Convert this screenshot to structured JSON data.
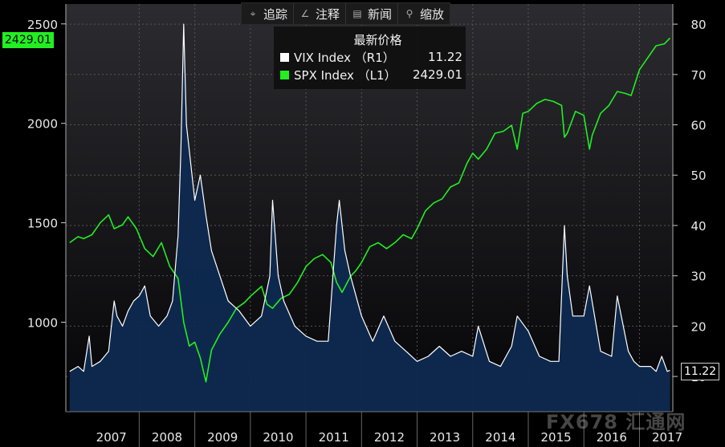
{
  "toolbar": {
    "items": [
      {
        "label": "追踪",
        "icon": "crosshair-icon"
      },
      {
        "label": "注释",
        "icon": "pencil-icon"
      },
      {
        "label": "新闻",
        "icon": "news-icon"
      },
      {
        "label": "缩放",
        "icon": "magnifier-icon"
      }
    ]
  },
  "legend": {
    "title": "最新价格",
    "entries": [
      {
        "name": "VIX Index （R1）",
        "value": "11.22",
        "color": "#ffffff"
      },
      {
        "name": "SPX Index （L1）",
        "value": "2429.01",
        "color": "#22ee22"
      }
    ]
  },
  "badges": {
    "spx": "2429.01",
    "vix": "11.22"
  },
  "watermark": "FX678 汇通网",
  "chart_data": {
    "type": "line",
    "x_categories": [
      "2007",
      "2008",
      "2009",
      "2010",
      "2011",
      "2012",
      "2013",
      "2014",
      "2015",
      "2016",
      "2017"
    ],
    "y_left": {
      "ticks": [
        1000,
        1500,
        2000,
        2500
      ],
      "range": [
        550,
        2600
      ]
    },
    "y_right": {
      "ticks": [
        10,
        20,
        30,
        40,
        50,
        60,
        70,
        80
      ],
      "range": [
        3,
        84
      ]
    },
    "grid": true,
    "series": [
      {
        "name": "SPX Index （L1）",
        "axis": "left",
        "color": "#22ee22",
        "x": [
          2006.75,
          2006.9,
          2007.0,
          2007.15,
          2007.3,
          2007.45,
          2007.55,
          2007.7,
          2007.8,
          2007.95,
          2008.1,
          2008.25,
          2008.4,
          2008.55,
          2008.7,
          2008.8,
          2008.9,
          2009.0,
          2009.1,
          2009.2,
          2009.3,
          2009.45,
          2009.6,
          2009.75,
          2009.9,
          2010.0,
          2010.2,
          2010.3,
          2010.4,
          2010.55,
          2010.7,
          2010.85,
          2011.0,
          2011.15,
          2011.3,
          2011.45,
          2011.55,
          2011.65,
          2011.8,
          2011.9,
          2012.0,
          2012.15,
          2012.3,
          2012.45,
          2012.6,
          2012.75,
          2012.9,
          2013.0,
          2013.15,
          2013.3,
          2013.45,
          2013.6,
          2013.75,
          2013.9,
          2014.0,
          2014.1,
          2014.25,
          2014.4,
          2014.55,
          2014.7,
          2014.8,
          2014.9,
          2015.0,
          2015.15,
          2015.3,
          2015.45,
          2015.6,
          2015.65,
          2015.7,
          2015.85,
          2016.0,
          2016.1,
          2016.15,
          2016.3,
          2016.45,
          2016.6,
          2016.75,
          2016.85,
          2017.0,
          2017.15,
          2017.3,
          2017.45,
          2017.55
        ],
        "y": [
          1400,
          1430,
          1420,
          1440,
          1500,
          1540,
          1470,
          1490,
          1530,
          1470,
          1370,
          1330,
          1400,
          1280,
          1220,
          1000,
          880,
          900,
          820,
          700,
          860,
          940,
          1000,
          1070,
          1100,
          1130,
          1180,
          1090,
          1070,
          1120,
          1140,
          1200,
          1280,
          1320,
          1340,
          1300,
          1200,
          1150,
          1230,
          1260,
          1300,
          1380,
          1400,
          1370,
          1400,
          1440,
          1420,
          1470,
          1560,
          1600,
          1620,
          1680,
          1700,
          1800,
          1850,
          1820,
          1870,
          1950,
          1960,
          1990,
          1870,
          2050,
          2060,
          2100,
          2120,
          2110,
          2090,
          1930,
          1950,
          2060,
          2040,
          1870,
          1940,
          2050,
          2090,
          2160,
          2150,
          2140,
          2270,
          2330,
          2390,
          2400,
          2429
        ]
      },
      {
        "name": "VIX Index （R1）",
        "axis": "right",
        "color": "#ffffff",
        "x": [
          2006.75,
          2006.9,
          2007.0,
          2007.1,
          2007.15,
          2007.3,
          2007.45,
          2007.55,
          2007.6,
          2007.7,
          2007.8,
          2007.9,
          2008.0,
          2008.1,
          2008.2,
          2008.35,
          2008.5,
          2008.6,
          2008.7,
          2008.75,
          2008.8,
          2008.85,
          2008.9,
          2009.0,
          2009.1,
          2009.2,
          2009.3,
          2009.45,
          2009.6,
          2009.8,
          2010.0,
          2010.2,
          2010.35,
          2010.4,
          2010.5,
          2010.6,
          2010.8,
          2011.0,
          2011.2,
          2011.4,
          2011.55,
          2011.6,
          2011.7,
          2011.8,
          2012.0,
          2012.2,
          2012.4,
          2012.6,
          2012.8,
          2013.0,
          2013.2,
          2013.4,
          2013.6,
          2013.8,
          2014.0,
          2014.1,
          2014.3,
          2014.5,
          2014.6,
          2014.7,
          2014.8,
          2015.0,
          2015.2,
          2015.4,
          2015.55,
          2015.65,
          2015.7,
          2015.8,
          2016.0,
          2016.1,
          2016.3,
          2016.5,
          2016.6,
          2016.8,
          2016.9,
          2017.0,
          2017.2,
          2017.3,
          2017.4,
          2017.5,
          2017.55
        ],
        "y": [
          11,
          12,
          11,
          18,
          12,
          13,
          15,
          25,
          22,
          20,
          23,
          25,
          26,
          28,
          22,
          20,
          22,
          25,
          38,
          55,
          80,
          60,
          55,
          45,
          50,
          42,
          35,
          30,
          25,
          23,
          20,
          22,
          30,
          45,
          30,
          25,
          20,
          18,
          17,
          17,
          40,
          45,
          35,
          30,
          22,
          17,
          22,
          17,
          15,
          13,
          14,
          16,
          14,
          15,
          14,
          20,
          13,
          12,
          14,
          16,
          22,
          19,
          14,
          13,
          13,
          40,
          30,
          22,
          22,
          28,
          15,
          14,
          26,
          15,
          13,
          12,
          12,
          11,
          14,
          11,
          11.22
        ]
      }
    ]
  }
}
